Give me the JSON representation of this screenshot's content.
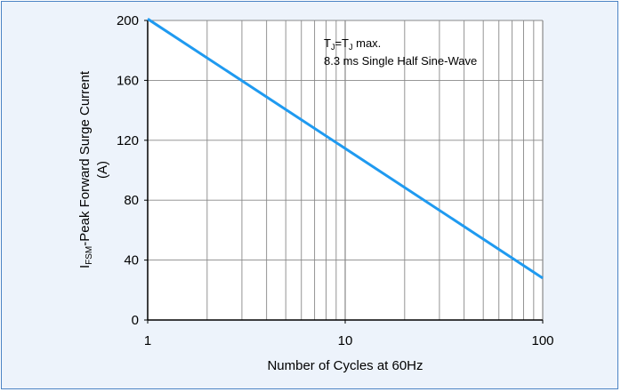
{
  "chart_data": {
    "type": "line",
    "xlabel": "Number of Cycles at 60Hz",
    "ylabel_line1_parts": [
      "I",
      "FSM",
      "-Peak Forward Surge Current"
    ],
    "ylabel_line2": "(A)",
    "x_scale": "log",
    "xlim": [
      1,
      100
    ],
    "ylim": [
      0,
      200
    ],
    "x_ticks": [
      1,
      10,
      100
    ],
    "x_tick_labels": [
      "1",
      "10",
      "100"
    ],
    "y_ticks": [
      0,
      40,
      80,
      120,
      160,
      200
    ],
    "y_tick_labels": [
      "0",
      "40",
      "80",
      "120",
      "160",
      "200"
    ],
    "grid": true,
    "series": [
      {
        "x": [
          1,
          100
        ],
        "y": [
          201,
          28
        ]
      }
    ],
    "annotation_line1_parts": [
      "T",
      "J",
      "=T",
      "J",
      " max."
    ],
    "annotation_line2": "8.3 ms Single Half Sine-Wave",
    "colors": {
      "line": "#1f9af0",
      "background": "#edf3fb",
      "plot": "#ffffff",
      "frame": "#4a82c4",
      "grid": "#888888"
    }
  }
}
